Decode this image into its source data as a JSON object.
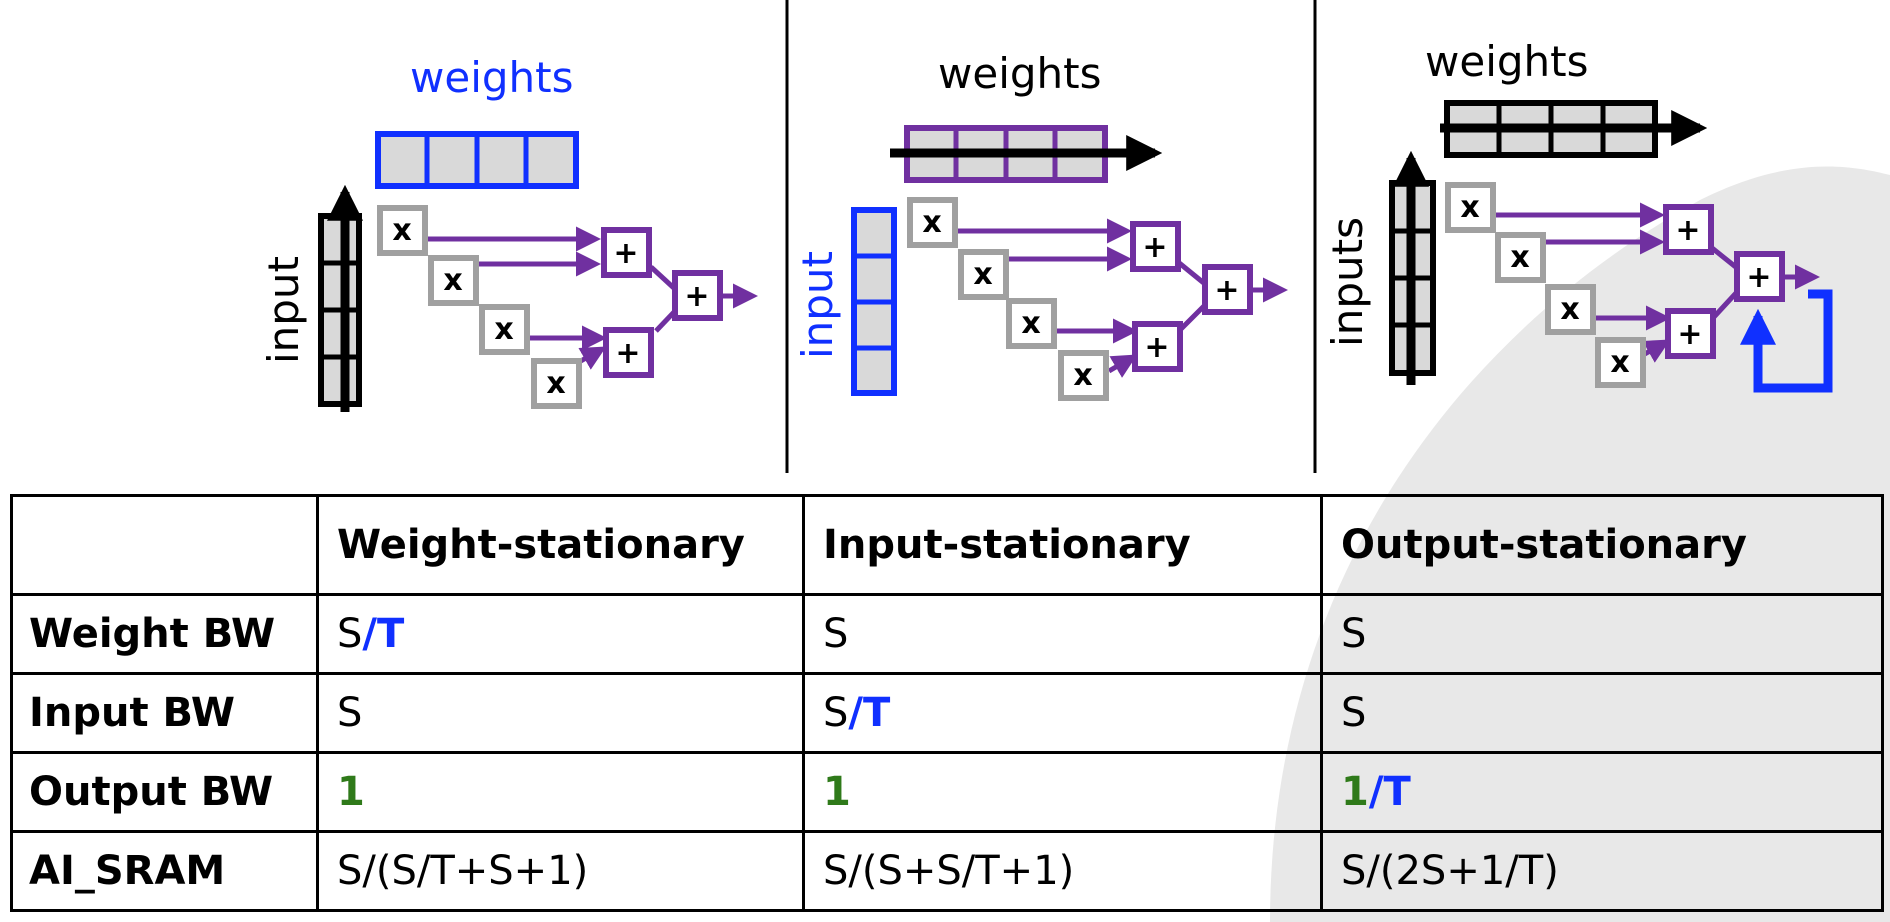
{
  "colors": {
    "blue": "#1030ff",
    "purple": "#7030a0",
    "gray": "#a0a0a0",
    "green": "#2f7a1a",
    "cell_fill": "#d9d9d9"
  },
  "panels": [
    {
      "weights_label": "weights",
      "input_label": "input"
    },
    {
      "weights_label": "weights",
      "input_label": "input"
    },
    {
      "weights_label": "weights",
      "input_label": "inputs"
    }
  ],
  "ops": {
    "mul": "x",
    "add": "+"
  },
  "table": {
    "headers": [
      "",
      "Weight-stationary",
      "Input-stationary",
      "Output-stationary"
    ],
    "rows": [
      {
        "label": "Weight BW",
        "cells": [
          {
            "base": "S",
            "accent": "/T"
          },
          {
            "base": "S"
          },
          {
            "base": "S"
          }
        ]
      },
      {
        "label": "Input BW",
        "cells": [
          {
            "base": "S"
          },
          {
            "base": "S",
            "accent": "/T"
          },
          {
            "base": "S"
          }
        ]
      },
      {
        "label": "Output BW",
        "cells": [
          {
            "green": "1"
          },
          {
            "green": "1"
          },
          {
            "green": "1",
            "accent": "/T"
          }
        ]
      },
      {
        "label": "AI_SRAM",
        "cells": [
          {
            "base": "S/(S/T+S+1)"
          },
          {
            "base": "S/(S+S/T+1)"
          },
          {
            "base": "S/(2S+1/T)"
          }
        ]
      }
    ]
  }
}
